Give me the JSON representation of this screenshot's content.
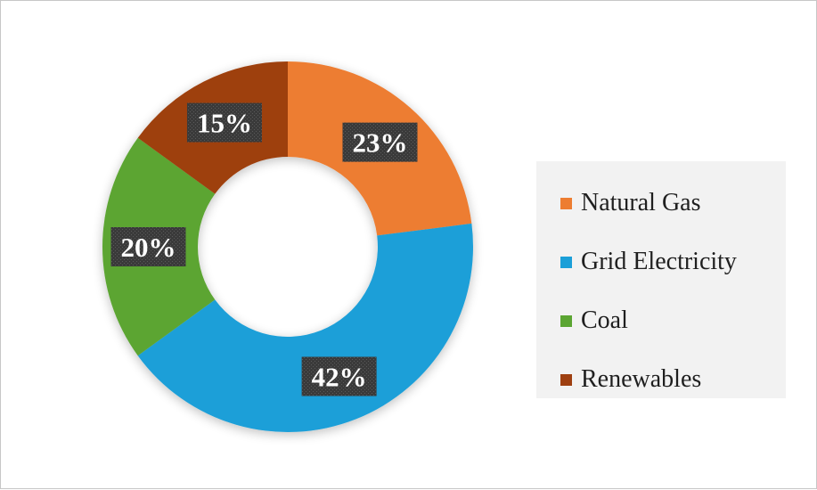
{
  "chart_data": {
    "type": "pie",
    "subtype": "donut",
    "title": "",
    "categories": [
      "Natural Gas",
      "Grid Electricity",
      "Coal",
      "Renewables"
    ],
    "values": [
      23,
      42,
      20,
      15
    ],
    "labels": [
      "23%",
      "42%",
      "20%",
      "15%"
    ],
    "colors": [
      "#ED7D31",
      "#1B9FD8",
      "#5BA532",
      "#9E3F10"
    ],
    "legend_position": "right"
  },
  "legend": {
    "items": [
      {
        "label": "Natural Gas",
        "color": "#ED7D31"
      },
      {
        "label": "Grid Electricity",
        "color": "#1B9FD8"
      },
      {
        "label": "Coal",
        "color": "#5BA532"
      },
      {
        "label": "Renewables",
        "color": "#9E3F10"
      }
    ]
  },
  "colors": {
    "label_box": "#404040",
    "label_text": "#FFFFFF",
    "legend_background": "#F2F2F2"
  }
}
